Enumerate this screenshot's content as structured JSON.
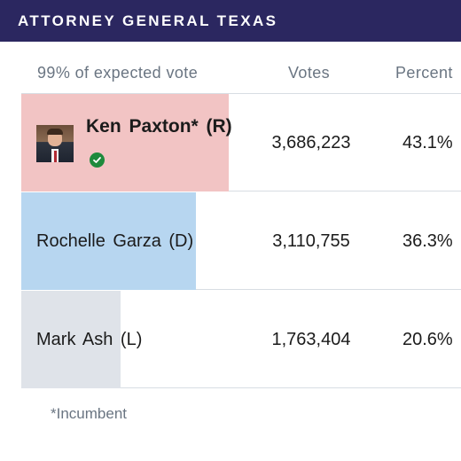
{
  "header": {
    "title": "ATTORNEY GENERAL TEXAS",
    "background": "#2b2760"
  },
  "columns": {
    "expected": "99% of expected vote",
    "votes": "Votes",
    "percent": "Percent"
  },
  "candidates": [
    {
      "name": "Ken Paxton* (R)",
      "votes": "3,686,223",
      "percent": "43.1%",
      "share": 0.431,
      "color": "#f2c4c4",
      "winner": true
    },
    {
      "name": "Rochelle Garza (D)",
      "votes": "3,110,755",
      "percent": "36.3%",
      "share": 0.363,
      "color": "#b7d6f0",
      "winner": false
    },
    {
      "name": "Mark Ash (L)",
      "votes": "1,763,404",
      "percent": "20.6%",
      "share": 0.206,
      "color": "#dfe3e9",
      "winner": false
    }
  ],
  "footnote": "*Incumbent"
}
